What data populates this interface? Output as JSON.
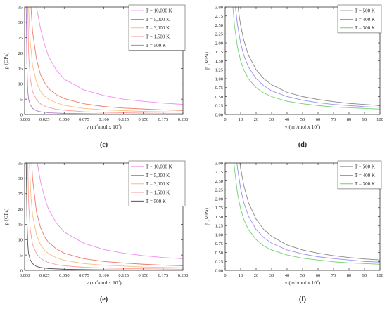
{
  "chart_data": [
    {
      "panel_label": "(c)",
      "type": "line",
      "xlabel_main": "v (m",
      "xlabel_sup1": "3",
      "xlabel_mid": "/mol x 10",
      "xlabel_sup2": "3",
      "xlabel_end": ")",
      "ylabel": "p (GPa)",
      "xlim": [
        0.0,
        0.2
      ],
      "ylim": [
        0,
        35
      ],
      "xticks": [
        "0.000",
        "0.025",
        "0.050",
        "0.075",
        "0.100",
        "0.125",
        "0.150",
        "0.175",
        "0.200"
      ],
      "yticks": [
        "0",
        "5",
        "10",
        "15",
        "20",
        "25",
        "30",
        "35"
      ],
      "legend_position": "top-right",
      "series": [
        {
          "name": "T = 10,000 K",
          "color": "#f08cf0",
          "x": [
            0.015,
            0.02,
            0.025,
            0.03,
            0.04,
            0.05,
            0.075,
            0.1,
            0.125,
            0.15,
            0.175,
            0.2
          ],
          "y": [
            35,
            28,
            23,
            19,
            14.5,
            11.5,
            8.0,
            6.2,
            5.0,
            4.3,
            3.7,
            3.3
          ]
        },
        {
          "name": "T = 5,000 K",
          "color": "#ee7b6a",
          "x": [
            0.008,
            0.01,
            0.015,
            0.02,
            0.025,
            0.03,
            0.04,
            0.05,
            0.075,
            0.1,
            0.125,
            0.15,
            0.175,
            0.2
          ],
          "y": [
            35,
            27,
            18,
            13,
            10.5,
            8.5,
            6.5,
            5.2,
            3.5,
            2.6,
            2.1,
            1.8,
            1.5,
            1.3
          ]
        },
        {
          "name": "T = 3,000 K",
          "color": "#f5c27e",
          "x": [
            0.005,
            0.007,
            0.01,
            0.015,
            0.02,
            0.025,
            0.03,
            0.04,
            0.05,
            0.075,
            0.1,
            0.15,
            0.2
          ],
          "y": [
            35,
            24,
            16,
            10.5,
            7.6,
            6.0,
            5.0,
            3.8,
            3.0,
            2.0,
            1.5,
            1.0,
            0.75
          ]
        },
        {
          "name": "T = 1,500 K",
          "color": "#ff9a9a",
          "x": [
            0.004,
            0.005,
            0.007,
            0.01,
            0.015,
            0.02,
            0.025,
            0.03,
            0.04,
            0.05,
            0.075,
            0.1,
            0.15,
            0.2
          ],
          "y": [
            35,
            20,
            12,
            7.5,
            4.8,
            3.5,
            2.8,
            2.3,
            1.7,
            1.4,
            0.9,
            0.7,
            0.45,
            0.35
          ]
        },
        {
          "name": "T = 500 K",
          "color": "#b27ac9",
          "x": [
            0.002,
            0.003,
            0.004,
            0.005,
            0.007,
            0.01,
            0.015,
            0.02,
            0.03,
            0.05,
            0.1,
            0.2
          ],
          "y": [
            35,
            15,
            7.5,
            5.0,
            3.2,
            2.0,
            1.2,
            0.9,
            0.55,
            0.35,
            0.17,
            0.09
          ]
        }
      ]
    },
    {
      "panel_label": "(d)",
      "type": "line",
      "xlabel_main": "v (m",
      "xlabel_sup1": "3",
      "xlabel_mid": "/mol x 10",
      "xlabel_sup2": "3",
      "xlabel_end": ")",
      "ylabel": "p (MPa)",
      "xlim": [
        0,
        100
      ],
      "ylim": [
        0,
        3.0
      ],
      "xticks": [
        "0",
        "10",
        "20",
        "30",
        "40",
        "50",
        "60",
        "70",
        "80",
        "90",
        "100"
      ],
      "yticks": [
        "0.00",
        "0.25",
        "0.50",
        "0.75",
        "1.00",
        "1.25",
        "1.50",
        "1.75",
        "2.00",
        "2.25",
        "2.50",
        "2.75",
        "3.00"
      ],
      "legend_position": "top-right",
      "series": [
        {
          "name": "T = 500 K",
          "color": "#888888",
          "x": [
            8.3,
            9,
            10,
            12,
            15,
            20,
            25,
            30,
            40,
            50,
            60,
            70,
            80,
            90,
            100
          ],
          "y": [
            3.0,
            2.77,
            2.49,
            2.08,
            1.66,
            1.25,
            1.0,
            0.83,
            0.62,
            0.5,
            0.42,
            0.36,
            0.31,
            0.28,
            0.25
          ]
        },
        {
          "name": "T = 400 K",
          "color": "#9c8ef0",
          "x": [
            6.6,
            8,
            10,
            12,
            15,
            20,
            25,
            30,
            40,
            50,
            60,
            70,
            80,
            90,
            100
          ],
          "y": [
            3.0,
            2.49,
            1.99,
            1.66,
            1.33,
            1.0,
            0.8,
            0.66,
            0.5,
            0.4,
            0.33,
            0.28,
            0.25,
            0.22,
            0.2
          ]
        },
        {
          "name": "T = 300 K",
          "color": "#6fd46f",
          "x": [
            5.0,
            6,
            8,
            10,
            12,
            15,
            20,
            25,
            30,
            40,
            50,
            60,
            70,
            80,
            90,
            100
          ],
          "y": [
            3.0,
            2.49,
            1.87,
            1.5,
            1.25,
            1.0,
            0.75,
            0.6,
            0.5,
            0.37,
            0.3,
            0.25,
            0.21,
            0.19,
            0.17,
            0.15
          ]
        }
      ]
    },
    {
      "panel_label": "(e)",
      "type": "line",
      "xlabel_main": "v (m",
      "xlabel_sup1": "3",
      "xlabel_mid": "/mol x 10",
      "xlabel_sup2": "3",
      "xlabel_end": ")",
      "ylabel": "p (GPa)",
      "xlim": [
        0.0,
        0.2
      ],
      "ylim": [
        0,
        35
      ],
      "xticks": [
        "0.000",
        "0.025",
        "0.050",
        "0.075",
        "0.100",
        "0.125",
        "0.150",
        "0.175",
        "0.200"
      ],
      "yticks": [
        "0",
        "5",
        "10",
        "15",
        "20",
        "25",
        "30",
        "35"
      ],
      "legend_position": "top-right",
      "series": [
        {
          "name": "T = 10,000 K",
          "color": "#f08cf0",
          "x": [
            0.016,
            0.02,
            0.025,
            0.03,
            0.04,
            0.05,
            0.075,
            0.1,
            0.125,
            0.15,
            0.175,
            0.2
          ],
          "y": [
            35,
            29,
            24,
            20,
            15.5,
            12.5,
            8.8,
            6.8,
            5.6,
            4.8,
            4.2,
            3.8
          ]
        },
        {
          "name": "T = 5,000 K",
          "color": "#ee7b6a",
          "x": [
            0.009,
            0.01,
            0.015,
            0.02,
            0.025,
            0.03,
            0.04,
            0.05,
            0.075,
            0.1,
            0.125,
            0.15,
            0.175,
            0.2
          ],
          "y": [
            35,
            30,
            19,
            14,
            11,
            9.2,
            7.0,
            5.6,
            3.8,
            2.9,
            2.4,
            2.0,
            1.7,
            1.5
          ]
        },
        {
          "name": "T = 3,000 K",
          "color": "#f5c27e",
          "x": [
            0.006,
            0.008,
            0.01,
            0.015,
            0.02,
            0.025,
            0.03,
            0.04,
            0.05,
            0.075,
            0.1,
            0.15,
            0.2
          ],
          "y": [
            35,
            24,
            18,
            11.5,
            8.4,
            6.6,
            5.5,
            4.1,
            3.3,
            2.2,
            1.7,
            1.1,
            0.85
          ]
        },
        {
          "name": "T = 1,500 K",
          "color": "#ff9a9a",
          "x": [
            0.004,
            0.005,
            0.007,
            0.01,
            0.015,
            0.02,
            0.025,
            0.03,
            0.04,
            0.05,
            0.075,
            0.1,
            0.15,
            0.2
          ],
          "y": [
            35,
            22,
            13.5,
            8.5,
            5.4,
            4.0,
            3.1,
            2.6,
            1.9,
            1.5,
            1.0,
            0.75,
            0.5,
            0.38
          ]
        },
        {
          "name": "T = 500 K",
          "color": "#555555",
          "x": [
            0.002,
            0.003,
            0.004,
            0.005,
            0.007,
            0.01,
            0.015,
            0.02,
            0.03,
            0.05,
            0.1,
            0.2
          ],
          "y": [
            35,
            16,
            8.5,
            5.5,
            3.5,
            2.2,
            1.3,
            0.95,
            0.6,
            0.37,
            0.18,
            0.1
          ]
        }
      ]
    },
    {
      "panel_label": "(f)",
      "type": "line",
      "xlabel_main": "v (m",
      "xlabel_sup1": "3",
      "xlabel_mid": "/mol x 10",
      "xlabel_sup2": "3",
      "xlabel_end": ")",
      "ylabel": "p (MPa)",
      "xlim": [
        0,
        100
      ],
      "ylim": [
        0,
        3.0
      ],
      "xticks": [
        "0",
        "10",
        "20",
        "30",
        "40",
        "50",
        "60",
        "70",
        "80",
        "90",
        "100"
      ],
      "yticks": [
        "0.00",
        "0.25",
        "0.50",
        "0.75",
        "1.00",
        "1.25",
        "1.50",
        "1.75",
        "2.00",
        "2.25",
        "2.50",
        "2.75",
        "3.00"
      ],
      "legend_position": "top-right",
      "series": [
        {
          "name": "T = 500 K",
          "color": "#888888",
          "x": [
            9.5,
            10,
            12,
            15,
            20,
            25,
            30,
            40,
            50,
            60,
            70,
            80,
            90,
            100
          ],
          "y": [
            3.0,
            2.85,
            2.38,
            1.9,
            1.43,
            1.14,
            0.95,
            0.71,
            0.57,
            0.48,
            0.41,
            0.36,
            0.32,
            0.29
          ]
        },
        {
          "name": "T = 400 K",
          "color": "#9c8ef0",
          "x": [
            7.6,
            8,
            10,
            12,
            15,
            20,
            25,
            30,
            40,
            50,
            60,
            70,
            80,
            90,
            100
          ],
          "y": [
            3.0,
            2.85,
            2.28,
            1.9,
            1.52,
            1.14,
            0.91,
            0.76,
            0.57,
            0.46,
            0.38,
            0.33,
            0.29,
            0.25,
            0.23
          ]
        },
        {
          "name": "T = 300 K",
          "color": "#6fd46f",
          "x": [
            5.7,
            6,
            8,
            10,
            12,
            15,
            20,
            25,
            30,
            40,
            50,
            60,
            70,
            80,
            90,
            100
          ],
          "y": [
            3.0,
            2.85,
            2.14,
            1.71,
            1.43,
            1.14,
            0.86,
            0.68,
            0.57,
            0.43,
            0.34,
            0.29,
            0.24,
            0.21,
            0.19,
            0.17
          ]
        }
      ]
    }
  ]
}
